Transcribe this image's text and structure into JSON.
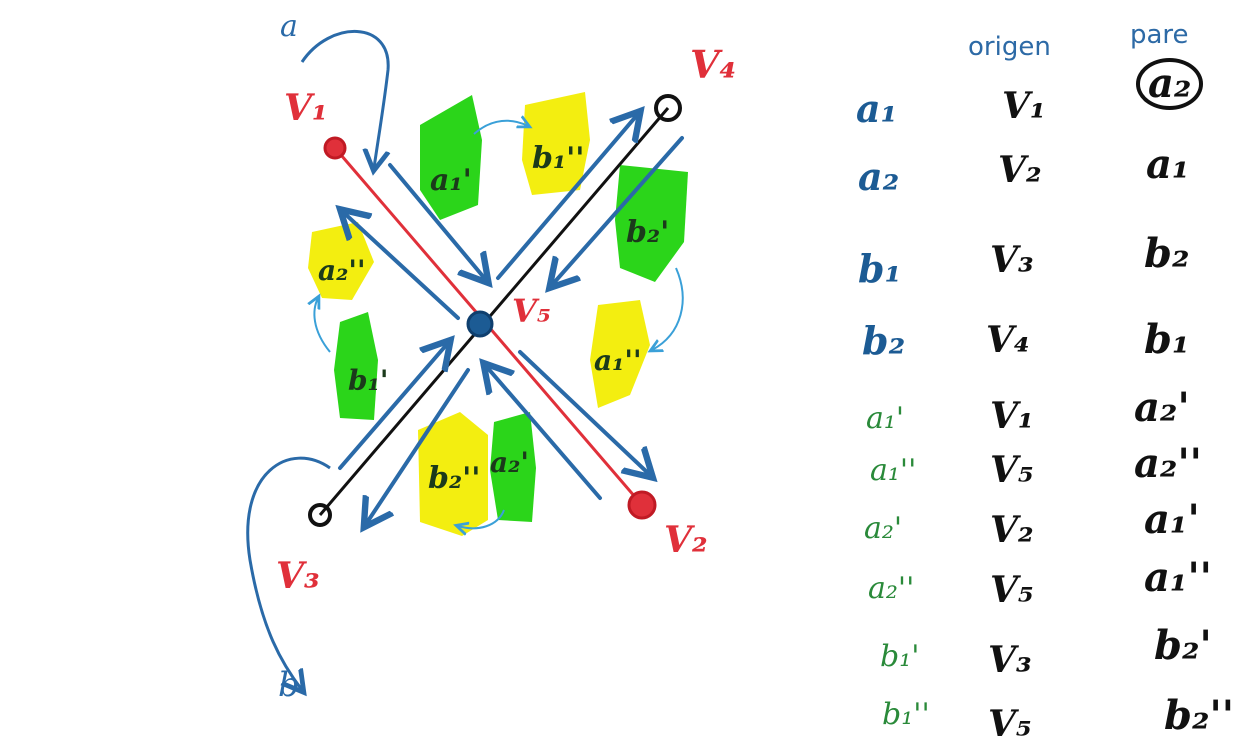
{
  "diagram": {
    "vertex_labels": {
      "v1": "V₁",
      "v2": "V₂",
      "v3": "V₃",
      "v4": "V₄",
      "v5": "V₅"
    },
    "outer_labels": {
      "a": "a",
      "b": "b"
    },
    "face_labels": {
      "a1p": "a₁'",
      "b1pp": "b₁''",
      "b2p": "b₂'",
      "a1pp": "a₁''",
      "a2pp": "a₂''",
      "b1p": "b₁'",
      "b2pp": "b₂''",
      "a2p": "a₂'"
    },
    "colors": {
      "red_edge": "#e0303a",
      "black_edge": "#111111",
      "blue_arrow": "#2a6aa8",
      "green_fill": "#2bd51a",
      "yellow_fill": "#f3ee10",
      "center_vertex": "#1c5b94"
    }
  },
  "table": {
    "headers": {
      "origin": "origen",
      "pair": "pare"
    },
    "rows": [
      {
        "name": "a₁",
        "origin": "V₁",
        "pair": "a₂",
        "style": "blue",
        "circled": true
      },
      {
        "name": "a₂",
        "origin": "V₂",
        "pair": "a₁",
        "style": "blue",
        "circled": false
      },
      {
        "name": "b₁",
        "origin": "V₃",
        "pair": "b₂",
        "style": "blue",
        "circled": false
      },
      {
        "name": "b₂",
        "origin": "V₄",
        "pair": "b₁",
        "style": "blue",
        "circled": false
      },
      {
        "name": "a₁'",
        "origin": "V₁",
        "pair": "a₂'",
        "style": "green",
        "circled": false
      },
      {
        "name": "a₁''",
        "origin": "V₅",
        "pair": "a₂''",
        "style": "green",
        "circled": false
      },
      {
        "name": "a₂'",
        "origin": "V₂",
        "pair": "a₁'",
        "style": "green",
        "circled": false
      },
      {
        "name": "a₂''",
        "origin": "V₅",
        "pair": "a₁''",
        "style": "green",
        "circled": false
      },
      {
        "name": "b₁'",
        "origin": "V₃",
        "pair": "b₂'",
        "style": "green",
        "circled": false
      },
      {
        "name": "b₁''",
        "origin": "V₅",
        "pair": "b₂''",
        "style": "green",
        "circled": false
      }
    ]
  }
}
